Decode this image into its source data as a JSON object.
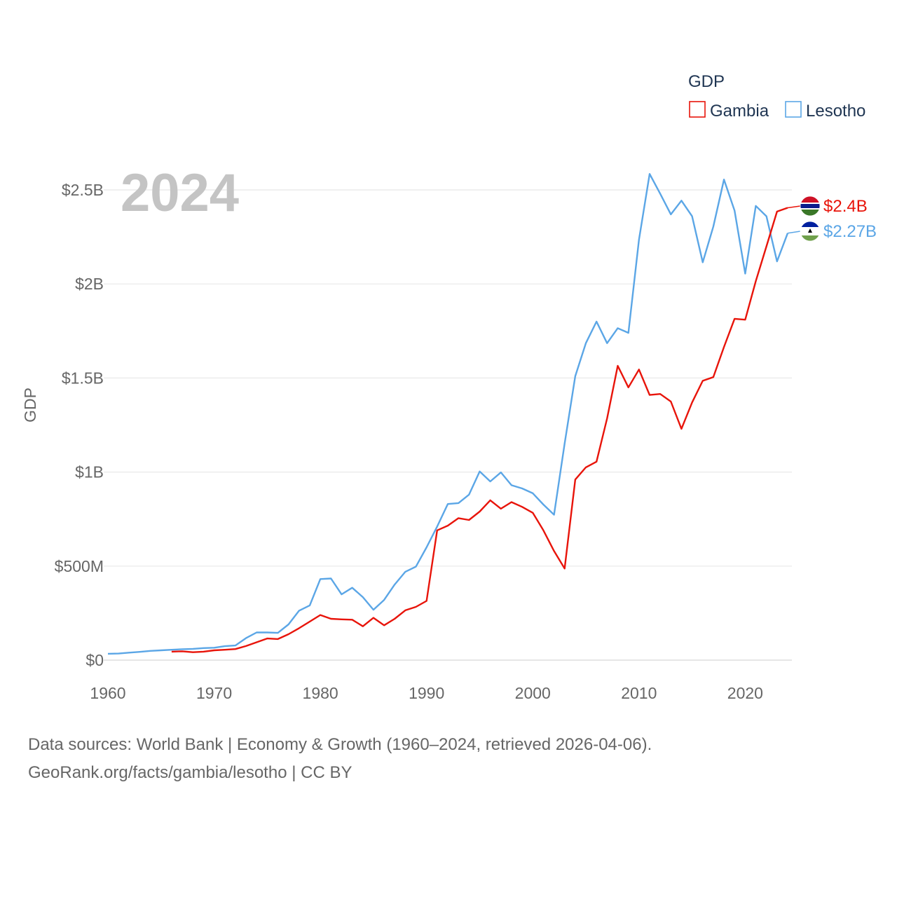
{
  "chart_data": {
    "type": "line",
    "title": "GDP",
    "year_label": "2024",
    "ylabel": "GDP",
    "xlabel": "",
    "xlim": [
      1960,
      2024
    ],
    "ylim": [
      0,
      2.6
    ],
    "y_unit": "USD billions",
    "x_ticks": [
      1960,
      1970,
      1980,
      1990,
      2000,
      2010,
      2020
    ],
    "x_tick_labels": [
      "1960",
      "1970",
      "1980",
      "1990",
      "2000",
      "2010",
      "2020"
    ],
    "y_ticks": [
      0,
      0.5,
      1,
      1.5,
      2,
      2.5
    ],
    "y_tick_labels": [
      "$0",
      "$500M",
      "$1B",
      "$1.5B",
      "$2B",
      "$2.5B"
    ],
    "legend_title": "GDP",
    "series": [
      {
        "name": "Gambia",
        "color": "#e8140a",
        "end_label": "$2.4B",
        "flag": "gambia-flag-icon",
        "x": [
          1966,
          1967,
          1968,
          1969,
          1970,
          1971,
          1972,
          1973,
          1974,
          1975,
          1976,
          1977,
          1978,
          1979,
          1980,
          1981,
          1982,
          1983,
          1984,
          1985,
          1986,
          1987,
          1988,
          1989,
          1990,
          1991,
          1992,
          1993,
          1994,
          1995,
          1996,
          1997,
          1998,
          1999,
          2000,
          2001,
          2002,
          2003,
          2004,
          2005,
          2006,
          2007,
          2008,
          2009,
          2010,
          2011,
          2012,
          2013,
          2014,
          2015,
          2016,
          2017,
          2018,
          2019,
          2020,
          2021,
          2022,
          2023,
          2024
        ],
        "values": [
          0.045,
          0.047,
          0.042,
          0.045,
          0.052,
          0.055,
          0.059,
          0.075,
          0.095,
          0.115,
          0.112,
          0.138,
          0.17,
          0.205,
          0.24,
          0.22,
          0.217,
          0.215,
          0.18,
          0.225,
          0.185,
          0.22,
          0.265,
          0.283,
          0.315,
          0.69,
          0.715,
          0.755,
          0.745,
          0.79,
          0.85,
          0.805,
          0.84,
          0.815,
          0.783,
          0.69,
          0.58,
          0.487,
          0.96,
          1.025,
          1.055,
          1.285,
          1.565,
          1.45,
          1.545,
          1.41,
          1.415,
          1.375,
          1.23,
          1.37,
          1.485,
          1.505,
          1.665,
          1.815,
          1.81,
          2.015,
          2.2,
          2.385,
          2.405
        ]
      },
      {
        "name": "Lesotho",
        "color": "#5ba6e6",
        "end_label": "$2.27B",
        "flag": "lesotho-flag-icon",
        "x": [
          1960,
          1961,
          1962,
          1963,
          1964,
          1965,
          1966,
          1967,
          1968,
          1969,
          1970,
          1971,
          1972,
          1973,
          1974,
          1975,
          1976,
          1977,
          1978,
          1979,
          1980,
          1981,
          1982,
          1983,
          1984,
          1985,
          1986,
          1987,
          1988,
          1989,
          1990,
          1991,
          1992,
          1993,
          1994,
          1995,
          1996,
          1997,
          1998,
          1999,
          2000,
          2001,
          2002,
          2003,
          2004,
          2005,
          2006,
          2007,
          2008,
          2009,
          2010,
          2011,
          2012,
          2013,
          2014,
          2015,
          2016,
          2017,
          2018,
          2019,
          2020,
          2021,
          2022,
          2023,
          2024
        ],
        "values": [
          0.034,
          0.035,
          0.04,
          0.044,
          0.049,
          0.052,
          0.055,
          0.058,
          0.06,
          0.064,
          0.066,
          0.074,
          0.078,
          0.117,
          0.147,
          0.147,
          0.145,
          0.19,
          0.263,
          0.291,
          0.431,
          0.434,
          0.35,
          0.385,
          0.335,
          0.268,
          0.32,
          0.402,
          0.47,
          0.497,
          0.6,
          0.71,
          0.83,
          0.835,
          0.88,
          1.003,
          0.95,
          0.998,
          0.93,
          0.913,
          0.887,
          0.827,
          0.773,
          1.151,
          1.51,
          1.685,
          1.8,
          1.685,
          1.765,
          1.74,
          2.235,
          2.585,
          2.48,
          2.37,
          2.443,
          2.36,
          2.115,
          2.305,
          2.555,
          2.39,
          2.055,
          2.415,
          2.36,
          2.12,
          2.27
        ]
      }
    ]
  },
  "source": {
    "line1": "Data sources: World Bank | Economy & Growth (1960–2024, retrieved 2026-04-06).",
    "line2": "GeoRank.org/facts/gambia/lesotho | CC BY"
  }
}
